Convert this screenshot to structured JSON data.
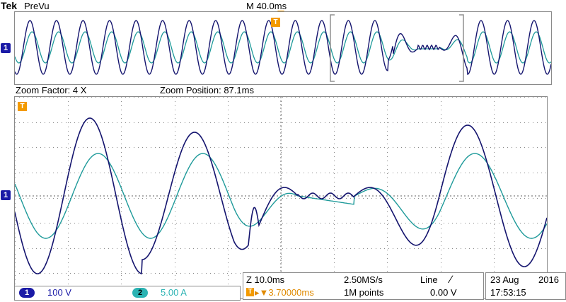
{
  "header": {
    "brand": "Tek",
    "mode": "PreVu",
    "main_timebase": "M 40.0ms"
  },
  "zoom": {
    "factor_label": "Zoom Factor: 4 X",
    "position_label": "Zoom Position: 87.1ms"
  },
  "markers": {
    "channel1": "1",
    "trigger": "T"
  },
  "channels": [
    {
      "id": "1",
      "scale": "100 V",
      "color": "#1a1aa6"
    },
    {
      "id": "2",
      "scale": "5.00 A",
      "color": "#2bb3b3"
    }
  ],
  "timebase": {
    "zoom_scale": "Z 10.0ms",
    "sample_rate": "2.50MS/s",
    "trigger_delay": "▸▼3.70000ms",
    "record_length": "1M points"
  },
  "trigger": {
    "source": "Line",
    "slope_symbol": "∕",
    "level": "0.00 V"
  },
  "datetime": {
    "date": "23 Aug",
    "year": "2016",
    "time": "17:53:15"
  },
  "colors": {
    "ch1_trace": "#14146e",
    "ch2_trace": "#1e9a9a",
    "trigger": "#f39a00",
    "grid": "#606060"
  }
}
